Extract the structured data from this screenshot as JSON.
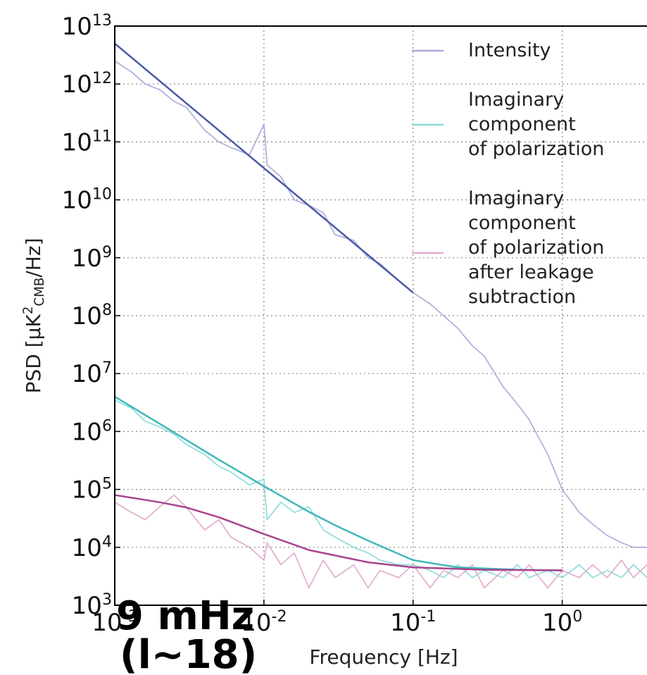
{
  "chart_data": {
    "type": "line",
    "xlabel": "Frequency [Hz]",
    "ylabel": "PSD [μK^{2}_{CMB}/Hz]",
    "annotations": [
      "9 mHz",
      "(l~18)"
    ],
    "xscale": "log",
    "yscale": "log",
    "grid": true,
    "legend": "upper right",
    "xlim": [
      0.001,
      3.7
    ],
    "ylim": [
      1000,
      10000000000000
    ],
    "xticks": [
      {
        "value": 0.001,
        "label": "10^{-3}"
      },
      {
        "value": 0.01,
        "label": "10^{-2}"
      },
      {
        "value": 0.1,
        "label": "10^{-1}"
      },
      {
        "value": 1,
        "label": "10^{0}"
      }
    ],
    "yticks": [
      {
        "value": 1000,
        "label": "10^{3}"
      },
      {
        "value": 10000,
        "label": "10^{4}"
      },
      {
        "value": 100000,
        "label": "10^{5}"
      },
      {
        "value": 1000000,
        "label": "10^{6}"
      },
      {
        "value": 10000000,
        "label": "10^{7}"
      },
      {
        "value": 100000000,
        "label": "10^{8}"
      },
      {
        "value": 1000000000,
        "label": "10^{9}"
      },
      {
        "value": 10000000000,
        "label": "10^{10}"
      },
      {
        "value": 100000000000,
        "label": "10^{11}"
      },
      {
        "value": 1000000000000,
        "label": "10^{12}"
      },
      {
        "value": 10000000000000,
        "label": "10^{13}"
      }
    ],
    "series": [
      {
        "name": "Intensity",
        "color": "#a9a9d9",
        "x": [
          0.001,
          0.0013,
          0.0016,
          0.002,
          0.0025,
          0.003,
          0.004,
          0.005,
          0.006,
          0.008,
          0.01,
          0.0105,
          0.013,
          0.016,
          0.02,
          0.025,
          0.03,
          0.04,
          0.05,
          0.06,
          0.08,
          0.1,
          0.13,
          0.16,
          0.2,
          0.25,
          0.3,
          0.4,
          0.5,
          0.6,
          0.8,
          1,
          1.3,
          1.6,
          2,
          2.5,
          3,
          3.7
        ],
        "values": [
          2500000000000,
          1600000000000,
          1000000000000,
          800000000000,
          500000000000,
          400000000000,
          160000000000,
          100000000000,
          80000000000,
          60000000000,
          200000000000,
          40000000000,
          25000000000,
          10000000000,
          8000000000,
          6000000000,
          2500000000,
          2000000000,
          1000000000,
          800000000,
          400000000,
          250000000,
          160000000,
          100000000,
          60000000,
          30000000,
          20000000,
          6000000,
          3000000,
          1600000,
          400000,
          100000,
          40000,
          25000,
          16000,
          12000,
          10000,
          10000
        ]
      },
      {
        "name": "Imaginary\ncomponent\nof polarization",
        "color": "#86dada",
        "x": [
          0.001,
          0.0013,
          0.0016,
          0.002,
          0.0025,
          0.003,
          0.004,
          0.005,
          0.006,
          0.008,
          0.01,
          0.0105,
          0.013,
          0.016,
          0.02,
          0.025,
          0.03,
          0.04,
          0.05,
          0.06,
          0.08,
          0.1,
          0.13,
          0.16,
          0.2,
          0.25,
          0.3,
          0.4,
          0.5,
          0.6,
          0.8,
          1,
          1.3,
          1.6,
          2,
          2.5,
          3,
          3.7
        ],
        "values": [
          3500000,
          2500000,
          1500000,
          1200000,
          900000,
          600000,
          400000,
          250000,
          200000,
          120000,
          150000,
          30000,
          60000,
          40000,
          50000,
          20000,
          15000,
          10000,
          8000,
          6000,
          5000,
          5000,
          4000,
          3000,
          5000,
          3000,
          4000,
          3000,
          5000,
          3000,
          4000,
          3000,
          5000,
          3000,
          4000,
          3000,
          5000,
          3000
        ]
      },
      {
        "name": "Imaginary\ncomponent\nof polarization\nafter leakage\nsubtraction",
        "color": "#e0a8cc",
        "x": [
          0.001,
          0.0013,
          0.0016,
          0.002,
          0.0025,
          0.003,
          0.004,
          0.005,
          0.006,
          0.008,
          0.01,
          0.0105,
          0.013,
          0.016,
          0.02,
          0.025,
          0.03,
          0.04,
          0.05,
          0.06,
          0.08,
          0.1,
          0.13,
          0.16,
          0.2,
          0.25,
          0.3,
          0.4,
          0.5,
          0.6,
          0.8,
          1,
          1.3,
          1.6,
          2,
          2.5,
          3,
          3.7
        ],
        "values": [
          60000,
          40000,
          30000,
          50000,
          80000,
          50000,
          20000,
          30000,
          15000,
          10000,
          6000,
          12000,
          5000,
          8000,
          2000,
          6000,
          3000,
          5000,
          2000,
          4000,
          3000,
          5000,
          2000,
          4000,
          3000,
          5000,
          2000,
          4000,
          3000,
          5000,
          2000,
          4000,
          3000,
          5000,
          3000,
          6000,
          3000,
          5000
        ]
      },
      {
        "color": "#4a5aa8",
        "x": [
          0.001,
          0.1
        ],
        "values": [
          5000000000000,
          250000000
        ]
      },
      {
        "color": "#3fb8b8",
        "x": [
          0.001,
          0.002,
          0.003,
          0.005,
          0.01,
          0.02,
          0.03,
          0.05,
          0.1,
          0.2,
          0.5,
          1
        ],
        "values": [
          4000000,
          1360000,
          720000,
          324000,
          114000,
          41000,
          24000,
          13000,
          6000,
          4500,
          4100,
          4000
        ]
      },
      {
        "color": "#a8448e",
        "x": [
          0.001,
          0.002,
          0.003,
          0.005,
          0.01,
          0.02,
          0.05,
          0.1,
          0.3,
          1
        ],
        "values": [
          80000,
          60000,
          49000,
          33000,
          17000,
          9000,
          5500,
          4500,
          4100,
          4000
        ]
      }
    ]
  }
}
